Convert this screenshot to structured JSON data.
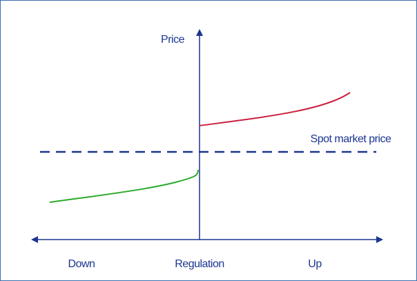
{
  "axes": {
    "y_label": "Price",
    "x_left": "Down",
    "x_center": "Regulation",
    "x_right": "Up"
  },
  "annotations": {
    "spot_price": "Spot market price"
  }
}
